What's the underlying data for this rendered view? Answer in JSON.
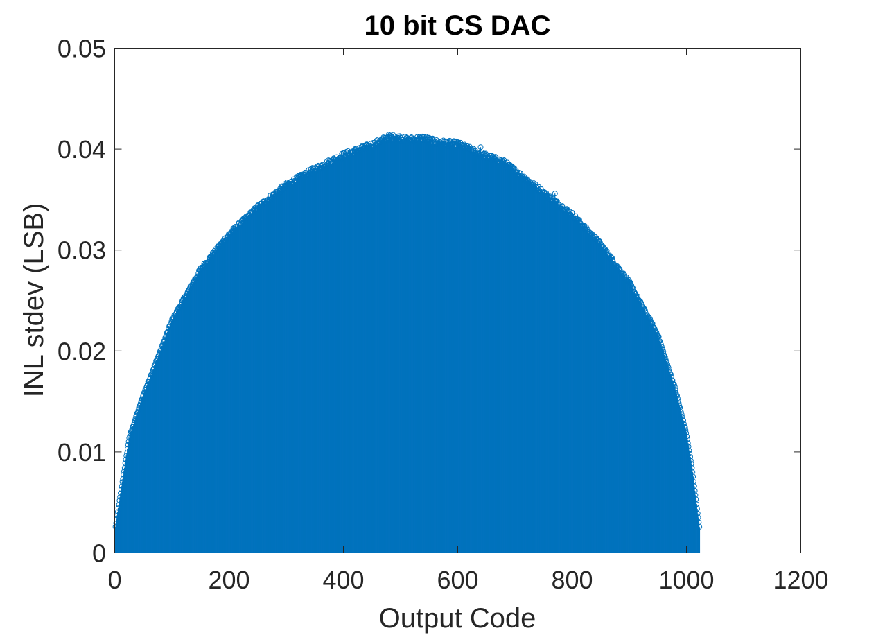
{
  "chart_data": {
    "type": "stem",
    "title": "10 bit CS DAC",
    "xlabel": "Output Code",
    "ylabel": "INL stdev (LSB)",
    "xlim": [
      0,
      1200
    ],
    "ylim": [
      0,
      0.05
    ],
    "xticks": [
      "0",
      "200",
      "400",
      "600",
      "800",
      "1000",
      "1200"
    ],
    "yticks": [
      "0",
      "0.01",
      "0.02",
      "0.03",
      "0.04",
      "0.05"
    ],
    "grid": false,
    "series_color": "#0072BD",
    "n_codes": 1023,
    "envelope": {
      "x": [
        1,
        25,
        50,
        75,
        100,
        150,
        200,
        250,
        300,
        350,
        400,
        450,
        480,
        500,
        512,
        540,
        560,
        600,
        640,
        680,
        720,
        760,
        800,
        850,
        900,
        950,
        980,
        1000,
        1010,
        1023
      ],
      "y": [
        0.0026,
        0.0115,
        0.0158,
        0.0195,
        0.0232,
        0.0283,
        0.0318,
        0.0345,
        0.0367,
        0.0383,
        0.0397,
        0.0407,
        0.0415,
        0.0414,
        0.0412,
        0.0414,
        0.041,
        0.0408,
        0.0398,
        0.039,
        0.0373,
        0.0355,
        0.0338,
        0.0308,
        0.027,
        0.0218,
        0.0165,
        0.012,
        0.0085,
        0.0026
      ]
    },
    "outliers": {
      "x": [
        640,
        702,
        770
      ],
      "y": [
        0.0402,
        0.0379,
        0.0356
      ]
    }
  }
}
